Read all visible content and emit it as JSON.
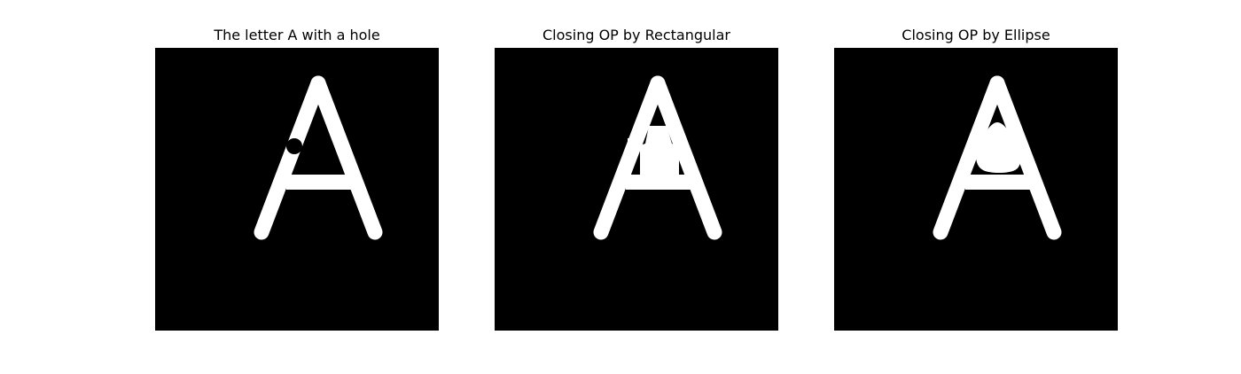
{
  "figure": {
    "background": "#ffffff",
    "panels": [
      {
        "title": "The letter A with a hole"
      },
      {
        "title": "Closing OP by Rectangular"
      },
      {
        "title": "Closing OP by Ellipse"
      }
    ]
  },
  "image_colors": {
    "background": "#000000",
    "foreground": "#ffffff"
  }
}
